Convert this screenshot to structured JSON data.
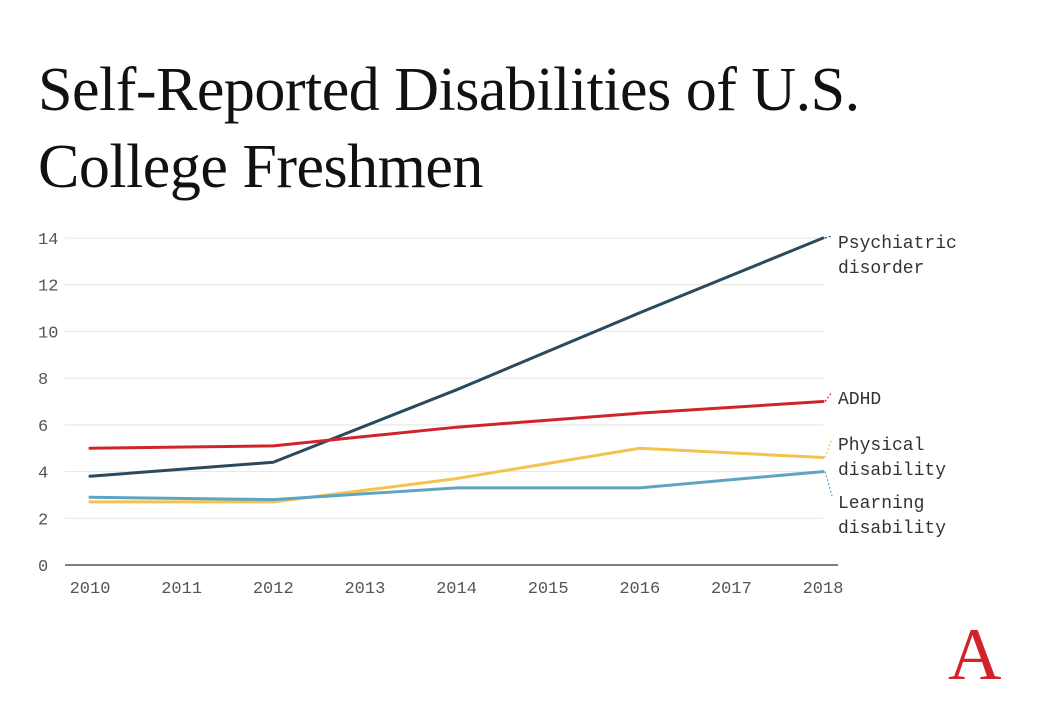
{
  "chart_data": {
    "type": "line",
    "title": "Self-Reported Disabilities of U.S. College Freshmen",
    "xlabel": "",
    "ylabel": "",
    "x": [
      2010,
      2012,
      2014,
      2016,
      2018
    ],
    "x_ticks": [
      "2010",
      "2011",
      "2012",
      "2013",
      "2014",
      "2015",
      "2016",
      "2017",
      "2018"
    ],
    "x_range": [
      2010,
      2018
    ],
    "y_ticks": [
      "0",
      "2",
      "4",
      "6",
      "8",
      "10",
      "12",
      "14"
    ],
    "ylim": [
      0,
      14
    ],
    "grid": true,
    "series": [
      {
        "name": "Psychiatric disorder",
        "label_lines": [
          "Psychiatric",
          "disorder"
        ],
        "color": "#2c4a5e",
        "values": [
          3.8,
          4.4,
          7.5,
          10.8,
          14.0
        ]
      },
      {
        "name": "ADHD",
        "label_lines": [
          "ADHD"
        ],
        "color": "#d2232a",
        "values": [
          5.0,
          5.1,
          5.9,
          6.5,
          7.0
        ]
      },
      {
        "name": "Physical disability",
        "label_lines": [
          "Physical",
          "disability"
        ],
        "color": "#f2c44d",
        "values": [
          2.7,
          2.7,
          3.7,
          5.0,
          4.6
        ]
      },
      {
        "name": "Learning disability",
        "label_lines": [
          "Learning",
          "disability"
        ],
        "color": "#5fa5c2",
        "values": [
          2.9,
          2.8,
          3.3,
          3.3,
          4.0
        ]
      }
    ]
  },
  "brand": {
    "logo_letter": "A",
    "logo_color": "#d2232a"
  }
}
